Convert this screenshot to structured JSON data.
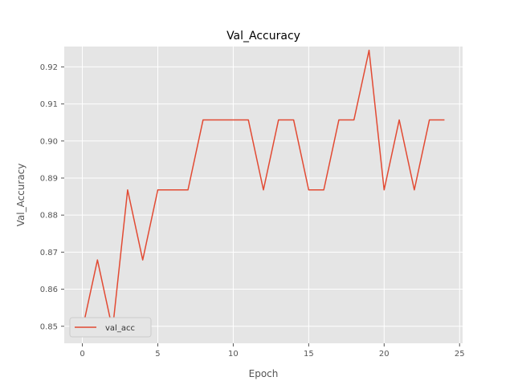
{
  "chart_data": {
    "type": "line",
    "title": "Val_Accuracy",
    "xlabel": "Epoch",
    "ylabel": "Val_Accuracy",
    "xlim": [
      -1.2,
      25.2
    ],
    "ylim": [
      0.8454,
      0.9255
    ],
    "xticks": [
      0,
      5,
      10,
      15,
      20,
      25
    ],
    "yticks": [
      0.85,
      0.86,
      0.87,
      0.88,
      0.89,
      0.9,
      0.91,
      0.92
    ],
    "ytick_labels": [
      "0.85",
      "0.86",
      "0.87",
      "0.88",
      "0.89",
      "0.90",
      "0.91",
      "0.92"
    ],
    "grid": true,
    "legend_position": "lower-left",
    "series": [
      {
        "name": "val_acc",
        "color": "#e24a33",
        "x": [
          0,
          1,
          2,
          3,
          4,
          5,
          6,
          7,
          8,
          9,
          10,
          11,
          12,
          13,
          14,
          15,
          16,
          17,
          18,
          19,
          20,
          21,
          22,
          23,
          24
        ],
        "y": [
          0.8491,
          0.8679,
          0.8491,
          0.8868,
          0.8679,
          0.8868,
          0.8868,
          0.8868,
          0.9057,
          0.9057,
          0.9057,
          0.9057,
          0.8868,
          0.9057,
          0.9057,
          0.8868,
          0.8868,
          0.9057,
          0.9057,
          0.9245,
          0.8868,
          0.9057,
          0.8868,
          0.9057,
          0.9057
        ]
      }
    ]
  },
  "colors": {
    "plot_background": "#e5e5e5",
    "grid": "#ffffff"
  }
}
